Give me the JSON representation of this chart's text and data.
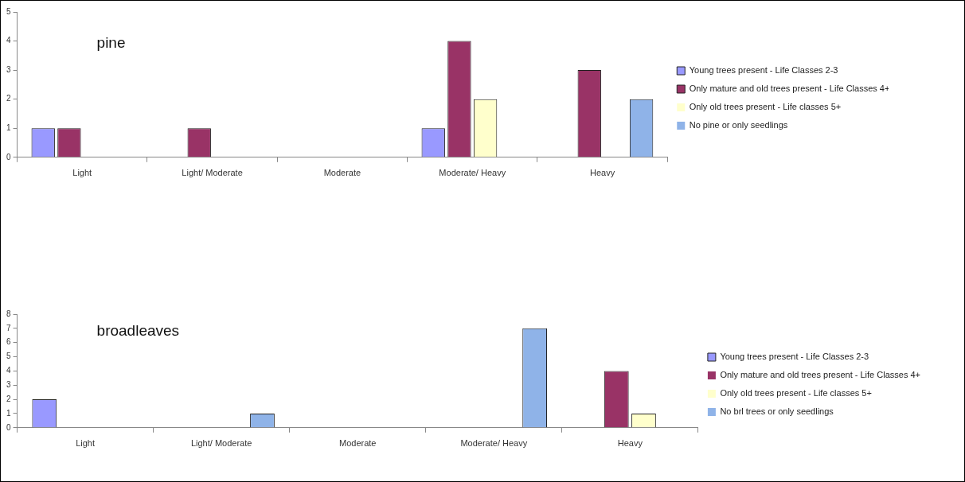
{
  "chart_data": [
    {
      "type": "bar",
      "title": "pine",
      "categories": [
        "Light",
        "Light/ Moderate",
        "Moderate",
        "Moderate/ Heavy",
        "Heavy"
      ],
      "ylim": [
        0,
        5
      ],
      "yticks": [
        0,
        1,
        2,
        3,
        4,
        5
      ],
      "grid": false,
      "legend": "right",
      "series": [
        {
          "name": "Young trees present - Life Classes 2-3",
          "color": "#9999ff",
          "values": [
            1,
            0,
            0,
            1,
            0
          ]
        },
        {
          "name": "Only mature and old trees present - Life Classes 4+",
          "color": "#993366",
          "values": [
            1,
            1,
            0,
            4,
            3
          ]
        },
        {
          "name": "Only old trees present - Life classes 5+",
          "color": "#ffffcc",
          "values": [
            0,
            0,
            0,
            2,
            0
          ]
        },
        {
          "name": "No pine or only seedlings",
          "color": "#8fb3e8",
          "values": [
            0,
            0,
            0,
            0,
            2
          ]
        }
      ]
    },
    {
      "type": "bar",
      "title": "broadleaves",
      "categories": [
        "Light",
        "Light/ Moderate",
        "Moderate",
        "Moderate/ Heavy",
        "Heavy"
      ],
      "ylim": [
        0,
        8
      ],
      "yticks": [
        0,
        1,
        2,
        3,
        4,
        5,
        6,
        7,
        8
      ],
      "grid": false,
      "legend": "right",
      "series": [
        {
          "name": "Young trees present - Life Classes 2-3",
          "color": "#9999ff",
          "values": [
            2,
            0,
            0,
            0,
            0
          ]
        },
        {
          "name": "Only mature and old trees present - Life Classes 4+",
          "color": "#993366",
          "values": [
            0,
            0,
            0,
            0,
            4
          ]
        },
        {
          "name": "Only old trees present - Life classes 5+",
          "color": "#ffffcc",
          "values": [
            0,
            0,
            0,
            0,
            1
          ]
        },
        {
          "name": "No brl trees or only seedlings",
          "color": "#8fb3e8",
          "values": [
            0,
            1,
            0,
            7,
            0
          ]
        }
      ]
    }
  ]
}
